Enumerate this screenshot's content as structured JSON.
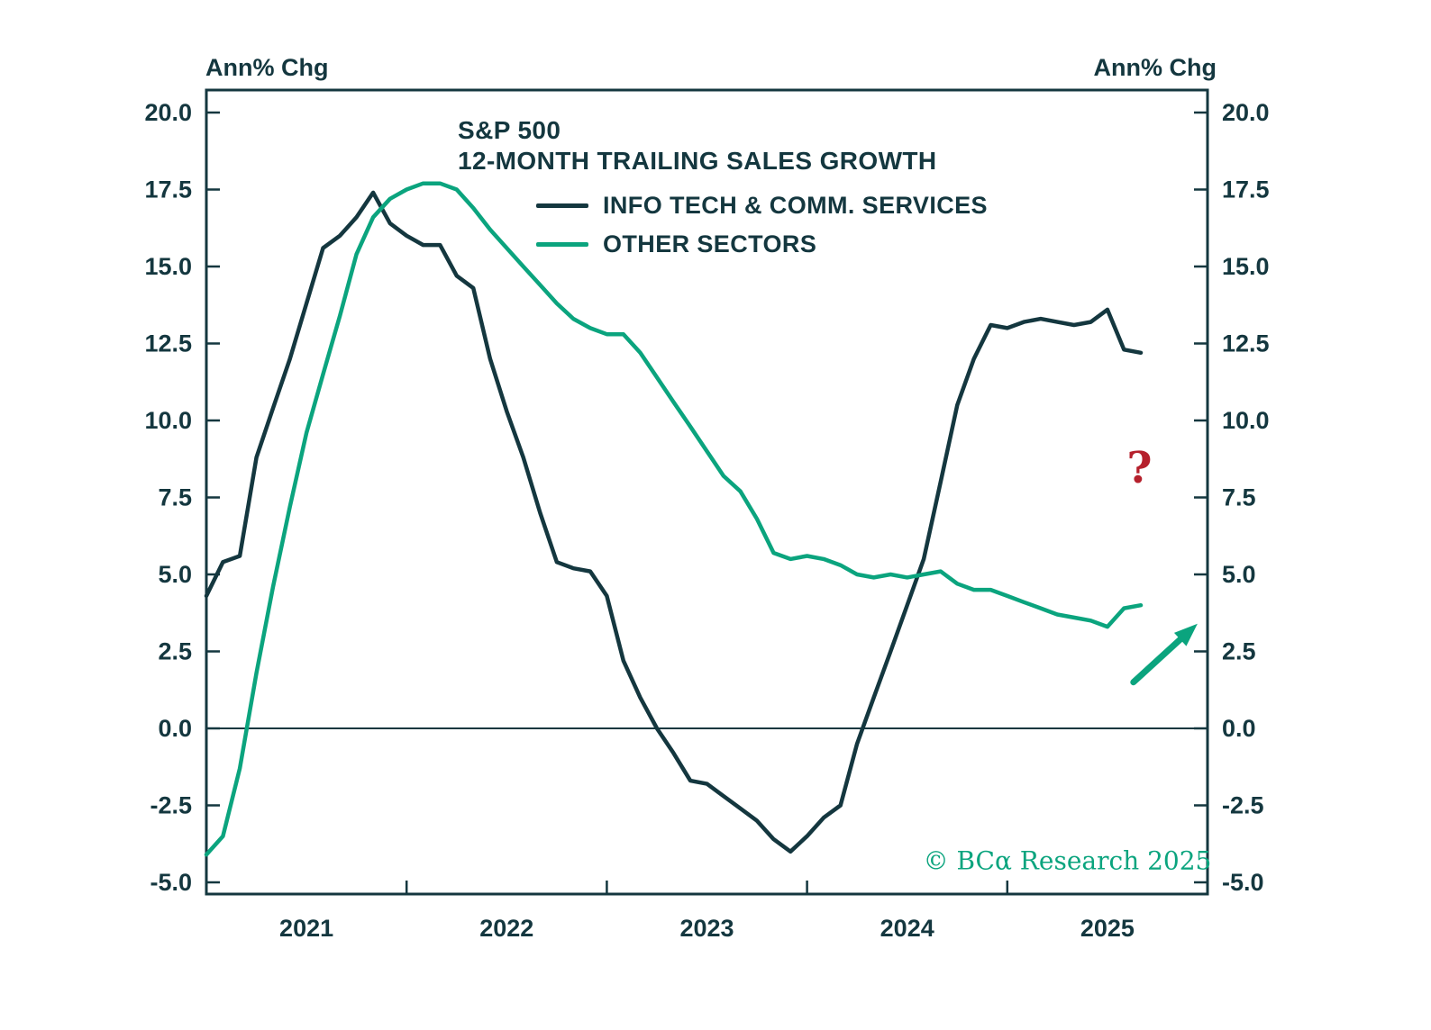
{
  "palette": {
    "ink": "#14373f",
    "green": "#0ba47e",
    "red": "#b5202c",
    "background": "#ffffff"
  },
  "chart_data": {
    "type": "line",
    "title": "S&P 500 12-MONTH TRAILING SALES GROWTH",
    "title_lines": [
      "S&P 500",
      "12-MONTH TRAILING SALES GROWTH"
    ],
    "ylabel_left": "Ann% Chg",
    "ylabel_right": "Ann% Chg",
    "ylim": [
      -5.0,
      20.0
    ],
    "y_ticks": [
      20.0,
      17.5,
      15.0,
      12.5,
      10.0,
      7.5,
      5.0,
      2.5,
      0.0,
      -2.5,
      -5.0
    ],
    "x_axis_range": [
      2021.0,
      2026.0
    ],
    "x_ticks_years": [
      2021,
      2022,
      2023,
      2024,
      2025
    ],
    "grid": false,
    "zero_line": true,
    "legend_position": "top-center",
    "x": [
      2021.0,
      2021.083,
      2021.167,
      2021.25,
      2021.333,
      2021.417,
      2021.5,
      2021.583,
      2021.667,
      2021.75,
      2021.833,
      2021.917,
      2022.0,
      2022.083,
      2022.167,
      2022.25,
      2022.333,
      2022.417,
      2022.5,
      2022.583,
      2022.667,
      2022.75,
      2022.833,
      2022.917,
      2023.0,
      2023.083,
      2023.167,
      2023.25,
      2023.333,
      2023.417,
      2023.5,
      2023.583,
      2023.667,
      2023.75,
      2023.833,
      2023.917,
      2024.0,
      2024.083,
      2024.167,
      2024.25,
      2024.333,
      2024.417,
      2024.5,
      2024.583,
      2024.667,
      2024.75,
      2024.833,
      2024.917,
      2025.0,
      2025.083,
      2025.167,
      2025.25,
      2025.333,
      2025.417,
      2025.5,
      2025.583,
      2025.667
    ],
    "series": [
      {
        "name": "INFO TECH & COMM. SERVICES",
        "color": "#14373f",
        "values": [
          4.3,
          5.4,
          5.6,
          8.8,
          10.4,
          12.0,
          13.8,
          15.6,
          16.0,
          16.6,
          17.4,
          16.4,
          16.0,
          15.7,
          15.7,
          14.7,
          14.3,
          12.0,
          10.3,
          8.8,
          7.0,
          5.4,
          5.2,
          5.1,
          4.3,
          2.2,
          1.0,
          0.0,
          -0.8,
          -1.7,
          -1.8,
          -2.2,
          -2.6,
          -3.0,
          -3.6,
          -4.0,
          -3.5,
          -2.9,
          -2.5,
          -0.5,
          1.0,
          2.5,
          4.0,
          5.5,
          8.0,
          10.5,
          12.0,
          13.1,
          13.0,
          13.2,
          13.3,
          13.2,
          13.1,
          13.2,
          13.6,
          12.3,
          12.2
        ]
      },
      {
        "name": "OTHER SECTORS",
        "color": "#0ba47e",
        "values": [
          -4.1,
          -3.5,
          -1.3,
          1.8,
          4.6,
          7.2,
          9.6,
          11.5,
          13.4,
          15.4,
          16.6,
          17.2,
          17.5,
          17.7,
          17.7,
          17.5,
          16.9,
          16.2,
          15.6,
          15.0,
          14.4,
          13.8,
          13.3,
          13.0,
          12.8,
          12.8,
          12.2,
          11.4,
          10.6,
          9.8,
          9.0,
          8.2,
          7.7,
          6.8,
          5.7,
          5.5,
          5.6,
          5.5,
          5.3,
          5.0,
          4.9,
          5.0,
          4.9,
          5.0,
          5.1,
          4.7,
          4.5,
          4.5,
          4.3,
          4.1,
          3.9,
          3.7,
          3.6,
          3.5,
          3.3,
          3.9,
          4.0
        ]
      }
    ],
    "annotations": {
      "question_mark": {
        "text": "?",
        "color": "#b5202c",
        "x": 2025.66,
        "y": 8.45
      },
      "arrow": {
        "color": "#0ba47e",
        "from": {
          "x": 2025.63,
          "y": 1.5
        },
        "to": {
          "x": 2025.95,
          "y": 3.4
        }
      },
      "copyright": {
        "text": "© BCα Research 2025",
        "color": "#0ba47e",
        "x": 2025.3,
        "y": -4.3
      }
    }
  }
}
